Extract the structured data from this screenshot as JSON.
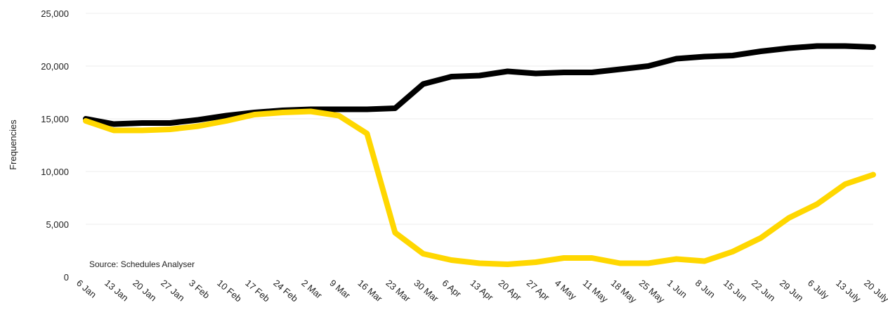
{
  "chart_data": {
    "type": "line",
    "title": "",
    "xlabel": "",
    "ylabel": "Frequencies",
    "ylim": [
      0,
      25000
    ],
    "yticks": [
      0,
      5000,
      10000,
      15000,
      20000,
      25000
    ],
    "ytick_labels": [
      "0",
      "5,000",
      "10,000",
      "15,000",
      "20,000",
      "25,000"
    ],
    "grid": true,
    "legend": "none",
    "categories": [
      "6 Jan",
      "13 Jan",
      "20 Jan",
      "27 Jan",
      "3 Feb",
      "10 Feb",
      "17 Feb",
      "24 Feb",
      "2 Mar",
      "9 Mar",
      "16 Mar",
      "23 Mar",
      "30 Mar",
      "6 Apr",
      "13 Apr",
      "20 Apr",
      "27 Apr",
      "4 May",
      "11 May",
      "18 May",
      "25 May",
      "1 Jun",
      "8 Jun",
      "15 Jun",
      "22 Jun",
      "29 Jun",
      "6 July",
      "13 July",
      "20 July"
    ],
    "series": [
      {
        "color": "#000000",
        "values": [
          15000,
          14500,
          14600,
          14600,
          14900,
          15300,
          15600,
          15800,
          15900,
          15900,
          15900,
          16000,
          18300,
          19000,
          19100,
          19500,
          19300,
          19400,
          19400,
          19700,
          20000,
          20700,
          20900,
          21000,
          21400,
          21700,
          21900,
          21900,
          21800
        ]
      },
      {
        "color": "#FFD700",
        "values": [
          14800,
          13900,
          13900,
          14000,
          14300,
          14800,
          15400,
          15600,
          15700,
          15300,
          13600,
          4200,
          2200,
          1600,
          1300,
          1200,
          1400,
          1800,
          1800,
          1300,
          1300,
          1700,
          1500,
          2400,
          3700,
          5600,
          6900,
          8800,
          9700
        ]
      }
    ],
    "annotations": [
      "Source: Schedules Analyser"
    ]
  }
}
